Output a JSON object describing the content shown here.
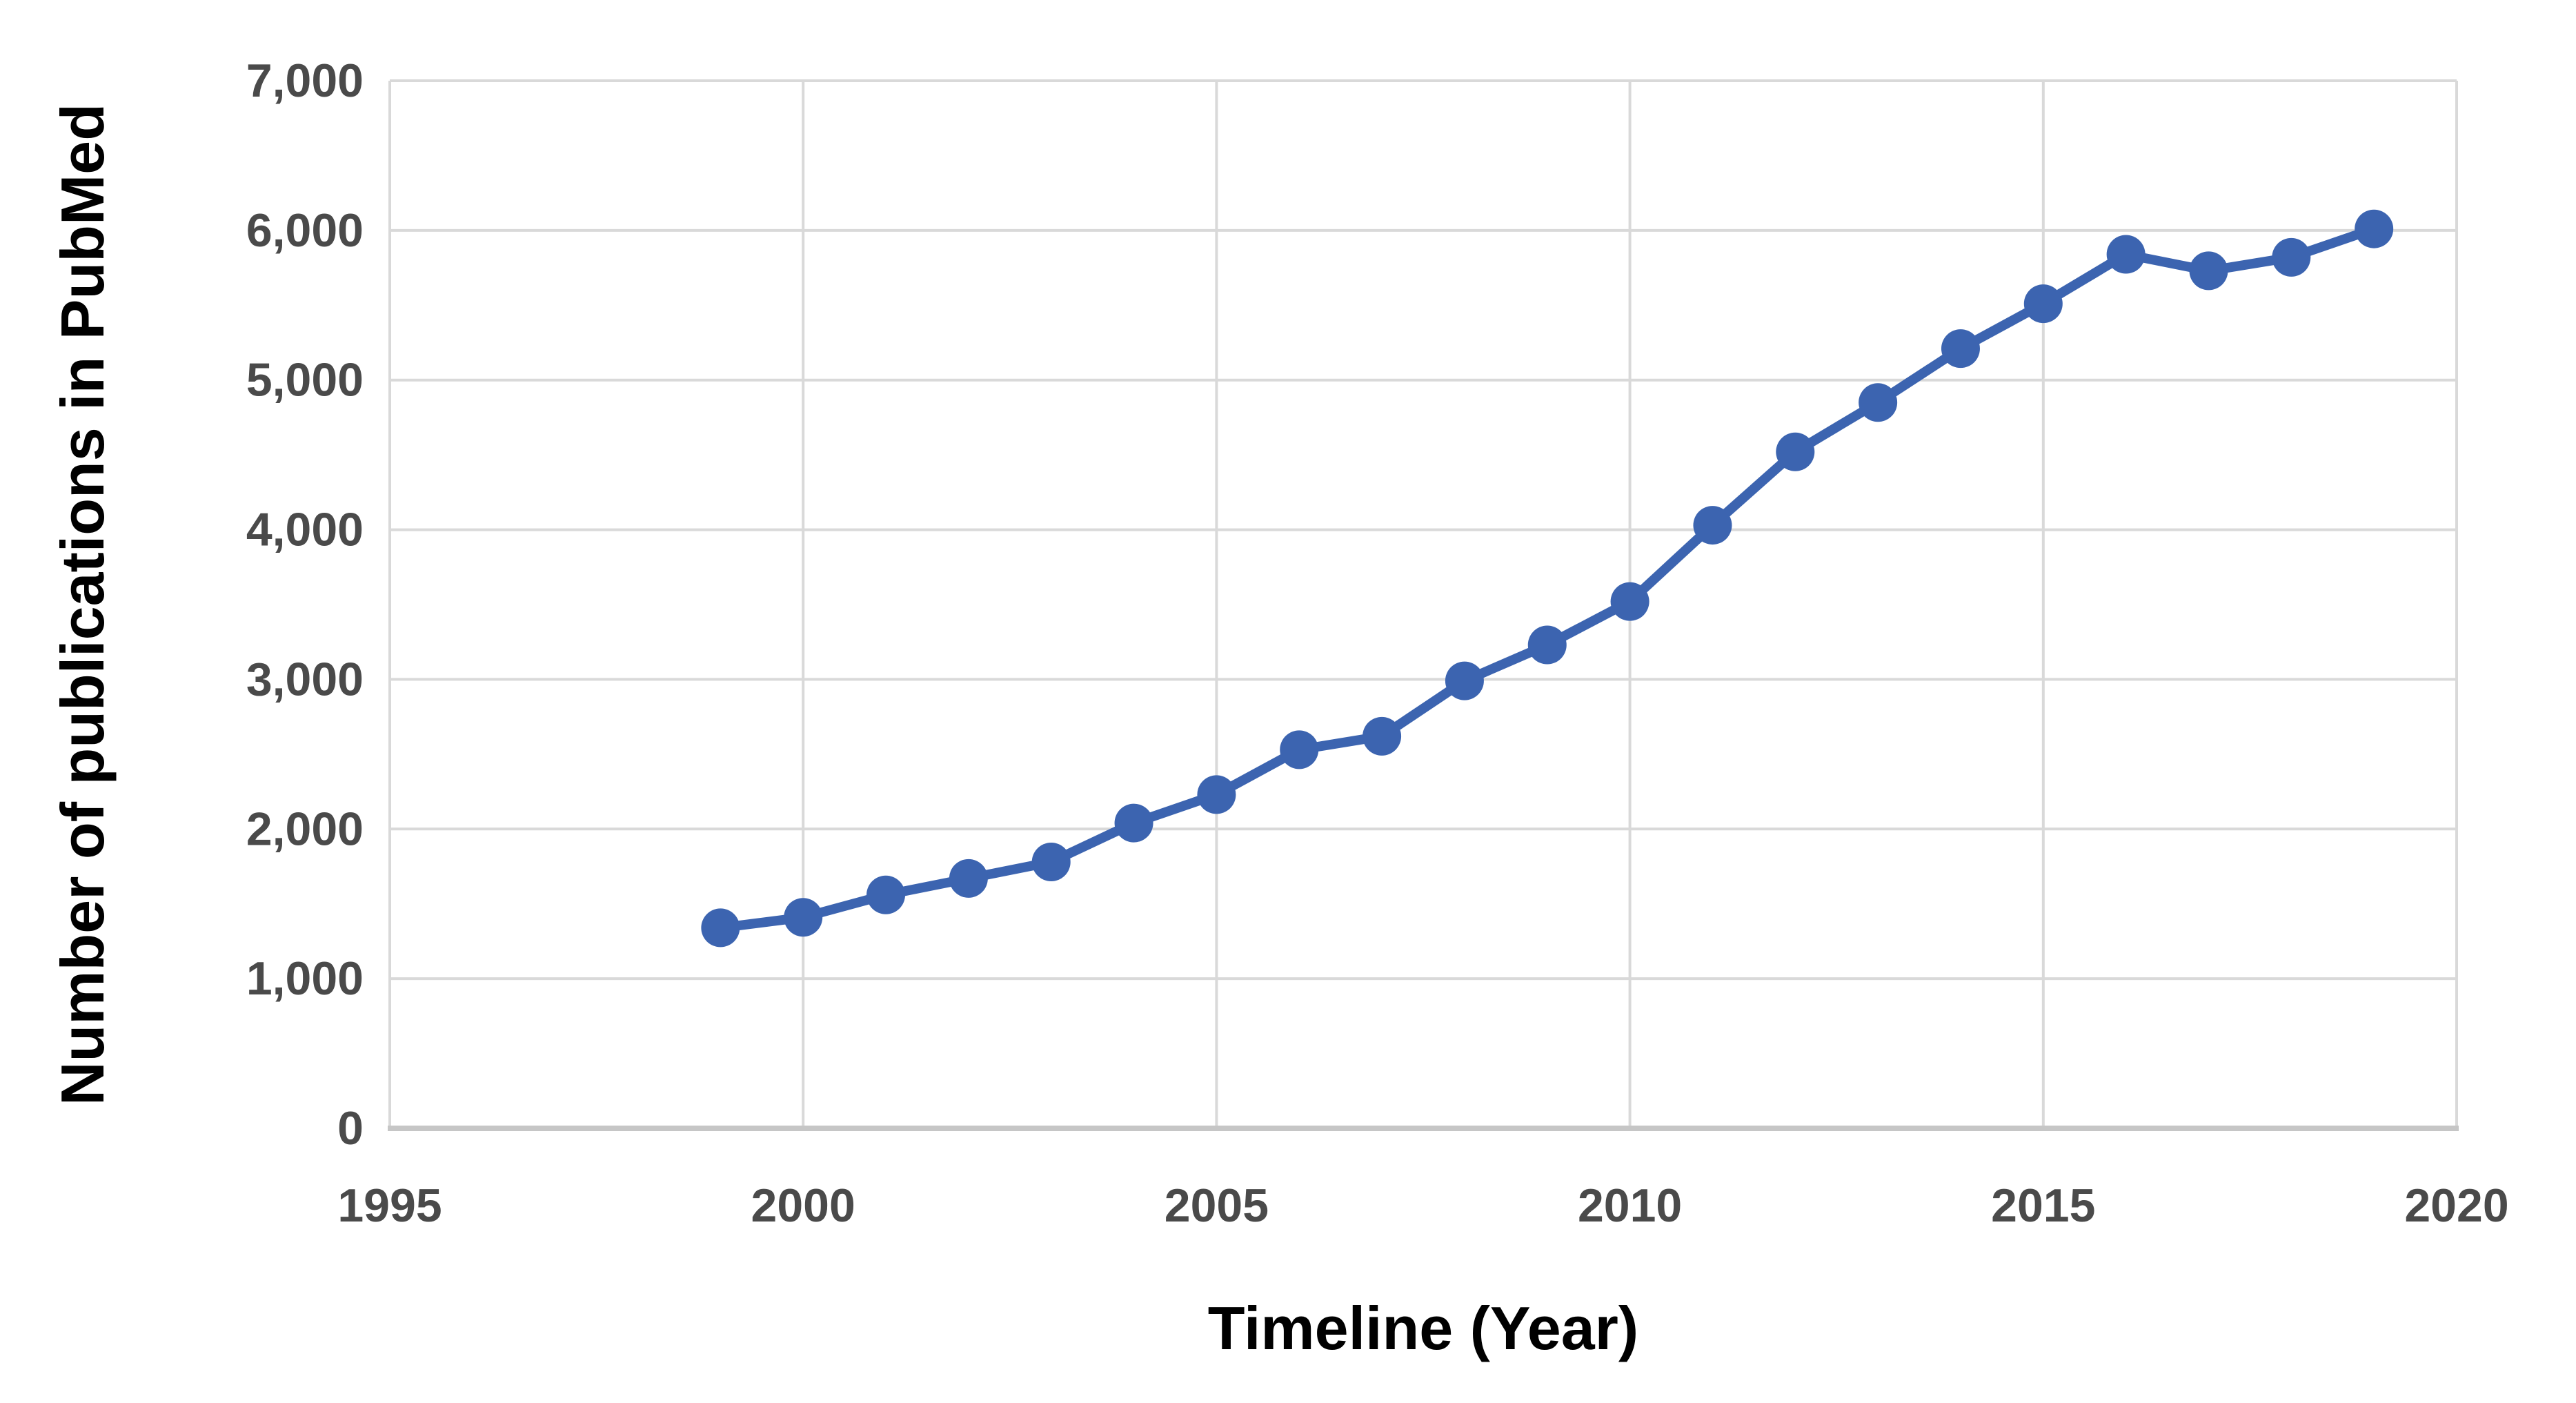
{
  "figure": {
    "background": "#ffffff"
  },
  "chart_data": {
    "type": "line",
    "title": "",
    "xlabel": "Timeline (Year)",
    "ylabel": "Number of publications in PubMed",
    "x": [
      1999,
      2000,
      2001,
      2002,
      2003,
      2004,
      2005,
      2006,
      2007,
      2008,
      2009,
      2010,
      2011,
      2012,
      2013,
      2014,
      2015,
      2016,
      2017,
      2018,
      2019
    ],
    "values": [
      1340,
      1410,
      1560,
      1670,
      1780,
      2040,
      2230,
      2530,
      2620,
      2990,
      3230,
      3520,
      4030,
      4520,
      4850,
      5210,
      5510,
      5840,
      5730,
      5820,
      6010
    ],
    "xlim": [
      1995,
      2020
    ],
    "ylim": [
      0,
      7000
    ],
    "xticks": [
      1995,
      2000,
      2005,
      2010,
      2015,
      2020
    ],
    "xtick_labels": [
      "1995",
      "2000",
      "2005",
      "2010",
      "2015",
      "2020"
    ],
    "yticks": [
      0,
      1000,
      2000,
      3000,
      4000,
      5000,
      6000,
      7000
    ],
    "ytick_labels": [
      "0",
      "1,000",
      "2,000",
      "3,000",
      "4,000",
      "5,000",
      "6,000",
      "7,000"
    ],
    "grid": true,
    "legend": false,
    "marker": "circle",
    "colors": {
      "line": "#3C64B0",
      "marker": "#3C64B0",
      "gridline": "#D9D9D9",
      "axis_line": "#C6C6C6",
      "tick_label": "#4A4A4A",
      "axis_title": "#000000"
    }
  }
}
